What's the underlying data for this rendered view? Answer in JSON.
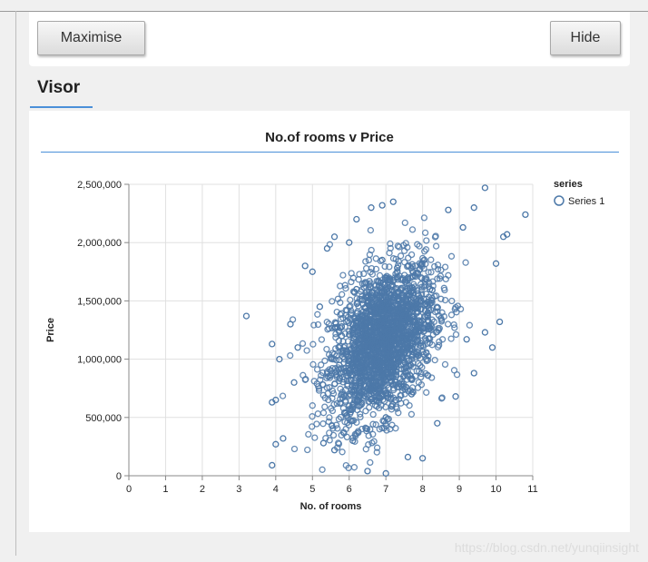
{
  "toolbar": {
    "maximise_label": "Maximise",
    "hide_label": "Hide"
  },
  "section": {
    "title": "Visor"
  },
  "watermark": "https://blog.csdn.net/yunqiinsight",
  "colors": {
    "point": "#4c78a8",
    "accent": "#4a90d9",
    "grid": "#e0e0e0"
  },
  "chart_data": {
    "type": "scatter",
    "title": "No.of rooms v Price",
    "xlabel": "No. of rooms",
    "ylabel": "Price",
    "xlim": [
      0,
      11
    ],
    "ylim": [
      0,
      2500000
    ],
    "x_ticks": [
      "0",
      "1",
      "2",
      "3",
      "4",
      "5",
      "6",
      "7",
      "8",
      "9",
      "10",
      "11"
    ],
    "y_ticks": [
      "0",
      "500,000",
      "1,000,000",
      "1,500,000",
      "2,000,000",
      "2,500,000"
    ],
    "grid": true,
    "legend_title": "series",
    "legend_position": "top-right",
    "series": [
      {
        "name": "Series 1",
        "points": [
          [
            3.2,
            1370000
          ],
          [
            3.9,
            90000
          ],
          [
            4.0,
            270000
          ],
          [
            3.9,
            630000
          ],
          [
            4.0,
            650000
          ],
          [
            3.9,
            1130000
          ],
          [
            4.1,
            1000000
          ],
          [
            4.2,
            320000
          ],
          [
            4.4,
            1300000
          ],
          [
            4.8,
            1800000
          ],
          [
            5.0,
            1750000
          ],
          [
            5.4,
            1950000
          ],
          [
            5.6,
            2050000
          ],
          [
            6.0,
            2000000
          ],
          [
            6.6,
            2300000
          ],
          [
            6.9,
            2320000
          ],
          [
            7.2,
            2350000
          ],
          [
            6.2,
            2200000
          ],
          [
            6.5,
            40000
          ],
          [
            7.0,
            20000
          ],
          [
            5.3,
            280000
          ],
          [
            5.6,
            220000
          ],
          [
            6.1,
            300000
          ],
          [
            7.6,
            160000
          ],
          [
            8.0,
            150000
          ],
          [
            8.7,
            2280000
          ],
          [
            9.1,
            2130000
          ],
          [
            9.4,
            2300000
          ],
          [
            9.7,
            2470000
          ],
          [
            10.2,
            2050000
          ],
          [
            10.8,
            2240000
          ],
          [
            10.3,
            2070000
          ],
          [
            10.0,
            1820000
          ],
          [
            10.1,
            1320000
          ],
          [
            9.7,
            1230000
          ],
          [
            9.2,
            1170000
          ],
          [
            9.4,
            880000
          ],
          [
            9.9,
            1100000
          ],
          [
            8.4,
            450000
          ],
          [
            8.9,
            680000
          ],
          [
            7.6,
            1700000
          ],
          [
            7.1,
            1450000
          ],
          [
            6.8,
            1400000
          ],
          [
            6.5,
            1100000
          ],
          [
            6.3,
            800000
          ],
          [
            7.4,
            950000
          ],
          [
            7.8,
            1250000
          ],
          [
            8.2,
            1600000
          ],
          [
            5.8,
            1200000
          ],
          [
            5.5,
            900000
          ],
          [
            6.0,
            600000
          ],
          [
            7.0,
            500000
          ],
          [
            7.7,
            700000
          ],
          [
            8.1,
            1000000
          ],
          [
            8.5,
            1350000
          ],
          [
            6.9,
            1850000
          ],
          [
            6.2,
            1600000
          ],
          [
            5.2,
            1450000
          ],
          [
            4.6,
            1100000
          ],
          [
            4.5,
            800000
          ]
        ]
      }
    ]
  }
}
